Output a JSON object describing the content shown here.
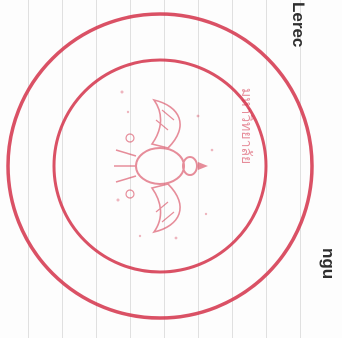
{
  "document": {
    "seal": {
      "kind": "official-seal",
      "emblem": "garuda-emblem",
      "color": "#d4324a",
      "inscription": "มหาวิทยาลัย"
    },
    "side_text_top": "Lerec",
    "side_text_bottom": "ngu"
  }
}
